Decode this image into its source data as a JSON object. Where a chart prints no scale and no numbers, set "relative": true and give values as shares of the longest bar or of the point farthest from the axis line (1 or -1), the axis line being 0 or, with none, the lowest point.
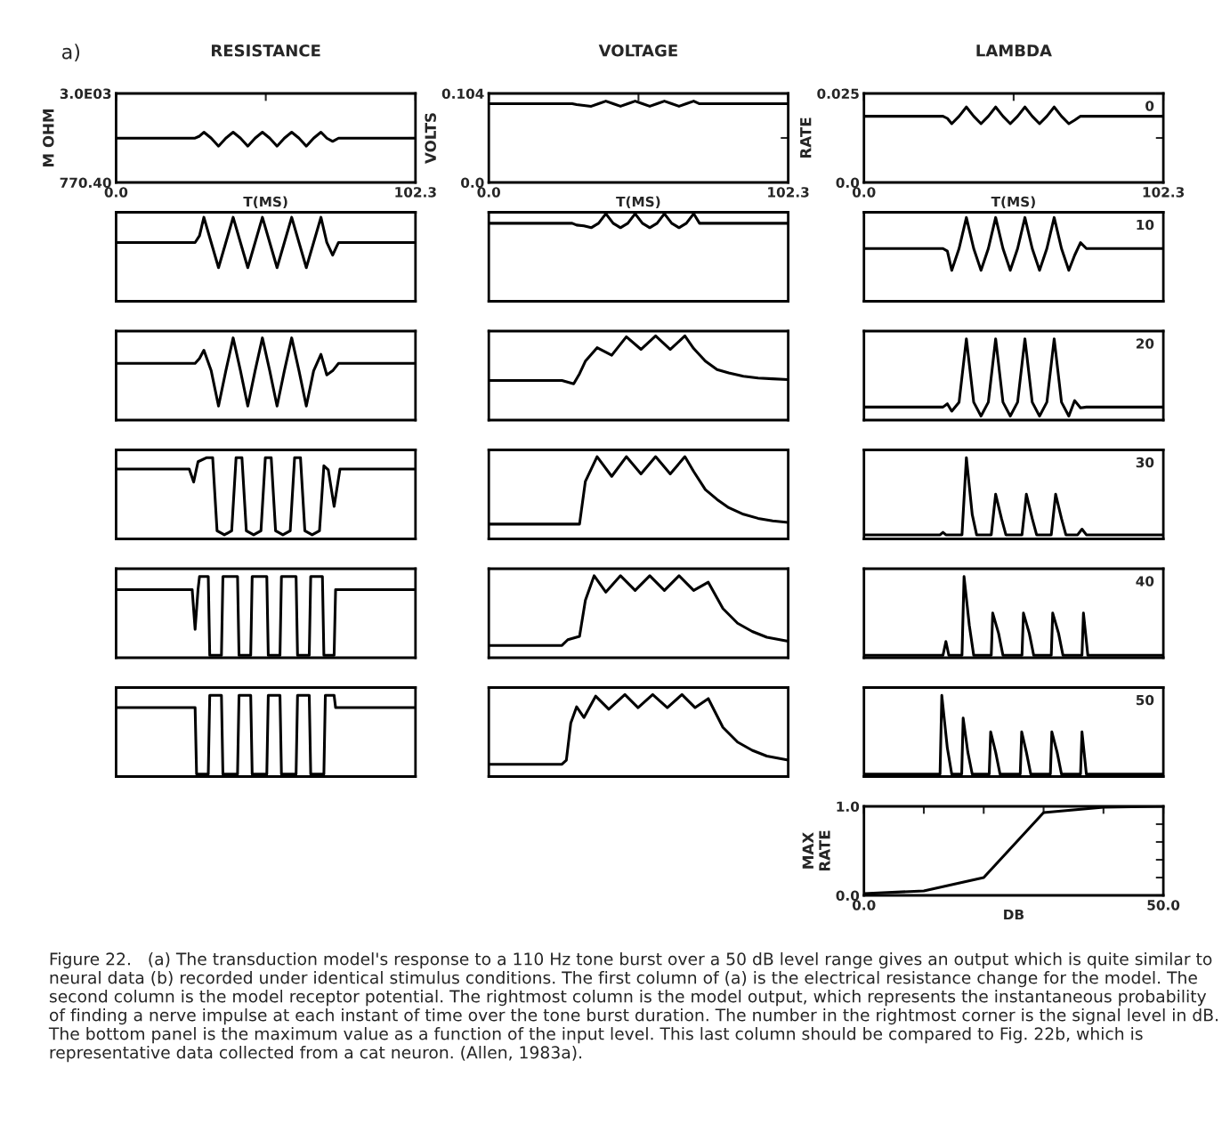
{
  "chart_data": [
    {
      "type": "line",
      "title": "RESISTANCE",
      "xlabel": "T(MS)",
      "ylabel": "M OHM",
      "annotations": [
        "a)",
        "Figure 22.   (a) The transduction model's response to a 110 Hz tone burst over a 50 dB level range gives an output which is quite similar to neural data (b) recorded under identical stimulus conditions. The first column of (a) is the electrical resistance change for the model. The second column is the model receptor potential. The rightmost column is the model output, which represents the instantaneous probability of finding a nerve impulse at each instant of time over the tone burst duration. The number in the rightmost corner is the signal level in dB. The bottom panel is the maximum value as a function of the input level. This last column should be compared to Fig. 22b, which is representative data collected from a cat neuron. (Allen, 1983a)."
      ],
      "xlim": [
        0,
        102.3
      ],
      "ylim": [
        770.4,
        3000
      ],
      "xticks": [
        {
          "value": 0,
          "label": "0.0"
        },
        {
          "value": 51.15,
          "label": null
        },
        {
          "value": 102.3,
          "label": "102.3"
        }
      ],
      "yticks": [
        {
          "value": 770.4,
          "label": "770.40"
        },
        {
          "value": 1885,
          "label": null
        },
        {
          "value": 3000,
          "label": "3.0E03"
        }
      ],
      "x": [
        0,
        27,
        28.5,
        30,
        32.5,
        35,
        37.5,
        40,
        42.5,
        45,
        47.5,
        50,
        52.5,
        55,
        57.5,
        60,
        62.5,
        65,
        67.5,
        70,
        72,
        74,
        76,
        102.3
      ],
      "series": [
        {
          "color": "#000000",
          "values": [
            1880,
            1880,
            1930,
            2030,
            1880,
            1680,
            1880,
            2030,
            1880,
            1680,
            1880,
            2030,
            1880,
            1680,
            1880,
            2030,
            1880,
            1680,
            1880,
            2030,
            1880,
            1800,
            1880,
            1880
          ]
        }
      ]
    },
    {
      "type": "line",
      "title": "VOLTAGE",
      "xlabel": "T(MS)",
      "ylabel": "VOLTS",
      "xlim": [
        0,
        102.3
      ],
      "ylim": [
        0,
        0.104
      ],
      "xticks": [
        {
          "value": 0,
          "label": "0.0"
        },
        {
          "value": 51.15,
          "label": null
        },
        {
          "value": 102.3,
          "label": "102.3"
        }
      ],
      "yticks": [
        {
          "value": 0,
          "label": "0.0"
        },
        {
          "value": 0.052,
          "label": null
        },
        {
          "value": 0.104,
          "label": "0.104"
        }
      ],
      "x": [
        0,
        27,
        28.5,
        30,
        32.5,
        35,
        37.5,
        40,
        42.5,
        45,
        47.5,
        50,
        52.5,
        55,
        57.5,
        60,
        62.5,
        65,
        67.5,
        70,
        72,
        74,
        76,
        102.3
      ],
      "series": [
        {
          "color": "#000000",
          "values": [
            0.092,
            0.092,
            0.092,
            0.091,
            0.09,
            0.089,
            0.092,
            0.095,
            0.092,
            0.089,
            0.092,
            0.095,
            0.092,
            0.089,
            0.092,
            0.095,
            0.092,
            0.089,
            0.092,
            0.095,
            0.092,
            0.092,
            0.092,
            0.092
          ]
        }
      ]
    },
    {
      "type": "line",
      "title": "LAMBDA",
      "xlabel": "T(MS)",
      "ylabel": "RATE",
      "annotations": [
        "0"
      ],
      "xlim": [
        0,
        102.3
      ],
      "ylim": [
        0,
        0.025
      ],
      "xticks": [
        {
          "value": 0,
          "label": "0.0"
        },
        {
          "value": 51.15,
          "label": null
        },
        {
          "value": 102.3,
          "label": "102.3"
        }
      ],
      "yticks": [
        {
          "value": 0,
          "label": "0.0"
        },
        {
          "value": 0.0125,
          "label": null
        },
        {
          "value": 0.025,
          "label": "0.025"
        }
      ],
      "x": [
        0,
        27,
        28.5,
        30,
        32.5,
        35,
        37.5,
        40,
        42.5,
        45,
        47.5,
        50,
        52.5,
        55,
        57.5,
        60,
        62.5,
        65,
        67.5,
        70,
        72,
        74,
        76,
        102.3
      ],
      "series": [
        {
          "color": "#000000",
          "values": [
            0.0186,
            0.0186,
            0.018,
            0.0165,
            0.0186,
            0.0212,
            0.0186,
            0.0165,
            0.0186,
            0.0212,
            0.0186,
            0.0165,
            0.0186,
            0.0212,
            0.0186,
            0.0165,
            0.0186,
            0.0212,
            0.0186,
            0.0165,
            0.0175,
            0.0186,
            0.0186,
            0.0186
          ]
        }
      ]
    },
    {
      "type": "line",
      "relative": true,
      "xlim": [
        0,
        102.3
      ],
      "x": [
        0,
        27,
        28.5,
        30,
        32.5,
        35,
        37.5,
        40,
        42.5,
        45,
        47.5,
        50,
        52.5,
        55,
        57.5,
        60,
        62.5,
        65,
        67.5,
        70,
        72,
        74,
        76,
        102.3
      ],
      "series": [
        {
          "color": "#000000",
          "values": [
            0.7,
            0.7,
            0.78,
            1,
            0.7,
            0.4,
            0.7,
            1,
            0.7,
            0.4,
            0.7,
            1,
            0.7,
            0.4,
            0.7,
            1,
            0.7,
            0.4,
            0.7,
            1,
            0.7,
            0.55,
            0.7,
            0.7
          ]
        }
      ]
    },
    {
      "type": "line",
      "relative": true,
      "xlim": [
        0,
        102.3
      ],
      "x": [
        0,
        27,
        28.5,
        30,
        32.5,
        35,
        37.5,
        40,
        42.5,
        45,
        47.5,
        50,
        52.5,
        55,
        57.5,
        60,
        62.5,
        65,
        67.5,
        70,
        72,
        74,
        76,
        102.3
      ],
      "series": [
        {
          "color": "#000000",
          "values": [
            0.89,
            0.89,
            0.89,
            0.87,
            0.86,
            0.84,
            0.89,
            1,
            0.89,
            0.84,
            0.89,
            1,
            0.89,
            0.84,
            0.89,
            1,
            0.89,
            0.84,
            0.89,
            1,
            0.89,
            0.89,
            0.89,
            0.89
          ]
        }
      ]
    },
    {
      "type": "line",
      "relative": true,
      "xlim": [
        0,
        102.3
      ],
      "annotations": [
        "10"
      ],
      "x": [
        0,
        27,
        28.5,
        30,
        32.5,
        35,
        37.5,
        40,
        42.5,
        45,
        47.5,
        50,
        52.5,
        55,
        57.5,
        60,
        62.5,
        65,
        67.5,
        70,
        72,
        74,
        76,
        102.3
      ],
      "series": [
        {
          "color": "#000000",
          "values": [
            0.63,
            0.63,
            0.6,
            0.37,
            0.63,
            1,
            0.63,
            0.37,
            0.63,
            1,
            0.63,
            0.37,
            0.63,
            1,
            0.63,
            0.37,
            0.63,
            1,
            0.63,
            0.37,
            0.55,
            0.7,
            0.63,
            0.63
          ]
        }
      ]
    },
    {
      "type": "line",
      "relative": true,
      "xlim": [
        0,
        102.3
      ],
      "x": [
        0,
        27,
        28.5,
        30,
        32.5,
        35,
        37.5,
        40,
        42.5,
        45,
        47.5,
        50,
        52.5,
        55,
        57.5,
        60,
        62.5,
        65,
        67.5,
        70,
        72,
        74,
        76,
        102.3
      ],
      "series": [
        {
          "color": "#000000",
          "values": [
            0.69,
            0.69,
            0.75,
            0.85,
            0.6,
            0.17,
            0.6,
            1,
            0.6,
            0.17,
            0.6,
            1,
            0.6,
            0.17,
            0.6,
            1,
            0.6,
            0.17,
            0.6,
            0.8,
            0.55,
            0.6,
            0.69,
            0.69
          ]
        }
      ]
    },
    {
      "type": "line",
      "relative": true,
      "xlim": [
        0,
        102.3
      ],
      "x": [
        0,
        25,
        29,
        31,
        33,
        37,
        42,
        47,
        52,
        57,
        62,
        67,
        70,
        74,
        78,
        82,
        87,
        92,
        97,
        102.3
      ],
      "series": [
        {
          "color": "#000000",
          "values": [
            0.47,
            0.47,
            0.43,
            0.55,
            0.7,
            0.86,
            0.77,
            0.99,
            0.84,
            1,
            0.84,
            1,
            0.85,
            0.7,
            0.6,
            0.56,
            0.52,
            0.5,
            0.49,
            0.48
          ]
        }
      ]
    },
    {
      "type": "line",
      "relative": true,
      "xlim": [
        0,
        102.3
      ],
      "annotations": [
        "20"
      ],
      "x": [
        0,
        27,
        28.5,
        30,
        32.5,
        35,
        37.5,
        40,
        42.5,
        45,
        47.5,
        50,
        52.5,
        55,
        57.5,
        60,
        62.5,
        65,
        67.5,
        70,
        72,
        74,
        76,
        102.3
      ],
      "series": [
        {
          "color": "#000000",
          "values": [
            0.16,
            0.16,
            0.2,
            0.11,
            0.22,
            1,
            0.22,
            0.05,
            0.22,
            1,
            0.22,
            0.05,
            0.22,
            1,
            0.22,
            0.05,
            0.22,
            1,
            0.22,
            0.05,
            0.24,
            0.15,
            0.16,
            0.16
          ]
        }
      ]
    },
    {
      "type": "line",
      "relative": true,
      "xlim": [
        0,
        102.3
      ],
      "x": [
        0,
        25,
        26.5,
        28,
        31,
        33,
        34.5,
        37,
        39.5,
        41,
        43,
        44.5,
        47,
        49.5,
        51,
        53,
        54.5,
        57,
        59.5,
        61,
        63,
        64.5,
        67,
        69.5,
        71,
        72.5,
        74.5,
        76.5,
        102.3
      ],
      "series": [
        {
          "color": "#000000",
          "values": [
            0.86,
            0.86,
            0.7,
            0.95,
            1,
            1,
            0.1,
            0.05,
            0.1,
            1,
            1,
            0.1,
            0.05,
            0.1,
            1,
            1,
            0.1,
            0.05,
            0.1,
            1,
            1,
            0.1,
            0.05,
            0.1,
            0.9,
            0.85,
            0.4,
            0.86,
            0.86
          ]
        }
      ]
    },
    {
      "type": "line",
      "relative": true,
      "xlim": [
        0,
        102.3
      ],
      "x": [
        0,
        25,
        29,
        31,
        33,
        37,
        42,
        47,
        52,
        57,
        62,
        67,
        70,
        74,
        78,
        82,
        87,
        92,
        97,
        102.3
      ],
      "series": [
        {
          "color": "#000000",
          "values": [
            0.18,
            0.18,
            0.18,
            0.18,
            0.7,
            1,
            0.76,
            1,
            0.79,
            1,
            0.79,
            1,
            0.82,
            0.6,
            0.48,
            0.38,
            0.3,
            0.25,
            0.22,
            0.2
          ]
        }
      ]
    },
    {
      "type": "line",
      "relative": true,
      "xlim": [
        0,
        102.3
      ],
      "annotations": [
        "30"
      ],
      "x": [
        0,
        26,
        27,
        28,
        33.5,
        35,
        37,
        38.5,
        43.5,
        45,
        47,
        48.5,
        54,
        55.5,
        57.5,
        59,
        64,
        65.5,
        67.5,
        69,
        73,
        74.5,
        76,
        102.3
      ],
      "series": [
        {
          "color": "#000000",
          "values": [
            0.05,
            0.05,
            0.08,
            0.05,
            0.05,
            1,
            0.3,
            0.05,
            0.05,
            0.55,
            0.25,
            0.05,
            0.05,
            0.55,
            0.25,
            0.05,
            0.05,
            0.55,
            0.25,
            0.05,
            0.05,
            0.12,
            0.05,
            0.05
          ]
        }
      ]
    },
    {
      "type": "line",
      "relative": true,
      "xlim": [
        0,
        102.3
      ],
      "x": [
        0,
        26,
        27,
        28,
        28.5,
        31.5,
        32,
        36,
        36.5,
        41.5,
        42,
        46,
        46.5,
        51.5,
        52,
        56,
        56.5,
        61.5,
        62,
        66,
        66.5,
        70.5,
        71,
        74.5,
        75,
        102.3
      ],
      "series": [
        {
          "color": "#000000",
          "values": [
            0.84,
            0.84,
            0.35,
            0.84,
            1,
            1,
            0.03,
            0.03,
            1,
            1,
            0.03,
            0.03,
            1,
            1,
            0.03,
            0.03,
            1,
            1,
            0.03,
            0.03,
            1,
            1,
            0.03,
            0.03,
            0.84,
            0.84
          ]
        }
      ]
    },
    {
      "type": "line",
      "relative": true,
      "xlim": [
        0,
        102.3
      ],
      "x": [
        0,
        25,
        27,
        31,
        33,
        36,
        40,
        45,
        50,
        55,
        60,
        65,
        70,
        75,
        80,
        85,
        90,
        95,
        102.3
      ],
      "series": [
        {
          "color": "#000000",
          "values": [
            0.15,
            0.15,
            0.22,
            0.26,
            0.7,
            1,
            0.8,
            1,
            0.82,
            1,
            0.82,
            1,
            0.82,
            0.92,
            0.6,
            0.42,
            0.32,
            0.25,
            0.2
          ]
        }
      ]
    },
    {
      "type": "line",
      "relative": true,
      "xlim": [
        0,
        102.3
      ],
      "annotations": [
        "40"
      ],
      "x": [
        0,
        27,
        28,
        29,
        33.5,
        34.2,
        36,
        37.5,
        43.5,
        44,
        46,
        47.5,
        54,
        54.5,
        56.5,
        58,
        64,
        64.5,
        66.5,
        68,
        74.5,
        75,
        76.5,
        102.3
      ],
      "series": [
        {
          "color": "#000000",
          "values": [
            0.03,
            0.03,
            0.2,
            0.03,
            0.03,
            1,
            0.4,
            0.03,
            0.03,
            0.55,
            0.3,
            0.03,
            0.03,
            0.55,
            0.3,
            0.03,
            0.03,
            0.55,
            0.3,
            0.03,
            0.03,
            0.55,
            0.03,
            0.03
          ]
        }
      ]
    },
    {
      "type": "line",
      "relative": true,
      "xlim": [
        0,
        102.3
      ],
      "x": [
        0,
        27,
        27.5,
        31.5,
        32,
        36,
        36.5,
        41.5,
        42,
        46,
        46.5,
        51.5,
        52,
        56,
        56.5,
        61.5,
        62,
        66,
        66.5,
        71,
        71.5,
        74.5,
        75,
        102.3
      ],
      "series": [
        {
          "color": "#000000",
          "values": [
            0.85,
            0.85,
            0.03,
            0.03,
            1,
            1,
            0.03,
            0.03,
            1,
            1,
            0.03,
            0.03,
            1,
            1,
            0.03,
            0.03,
            1,
            1,
            0.03,
            0.03,
            1,
            1,
            0.85,
            0.85
          ]
        }
      ]
    },
    {
      "type": "line",
      "relative": true,
      "xlim": [
        0,
        102.3
      ],
      "x": [
        0,
        25,
        26.5,
        28,
        30,
        32.5,
        36.5,
        41,
        46.5,
        51,
        56,
        61,
        66,
        70.5,
        75,
        80,
        85,
        90,
        95,
        102.3
      ],
      "series": [
        {
          "color": "#000000",
          "values": [
            0.15,
            0.15,
            0.2,
            0.65,
            0.85,
            0.72,
            0.98,
            0.82,
            1,
            0.84,
            1,
            0.84,
            1,
            0.84,
            0.95,
            0.6,
            0.42,
            0.32,
            0.25,
            0.2
          ]
        }
      ]
    },
    {
      "type": "line",
      "relative": true,
      "xlim": [
        0,
        102.3
      ],
      "annotations": [
        "50"
      ],
      "x": [
        0,
        26,
        26.6,
        28.5,
        30,
        33.4,
        33.9,
        35.5,
        37,
        42.8,
        43.3,
        45,
        46.5,
        53.4,
        53.9,
        55.5,
        57,
        63.7,
        64.2,
        66,
        67.5,
        74,
        74.5,
        76,
        102.3
      ],
      "series": [
        {
          "color": "#000000",
          "values": [
            0.03,
            0.03,
            1,
            0.35,
            0.03,
            0.03,
            0.72,
            0.3,
            0.03,
            0.03,
            0.55,
            0.3,
            0.03,
            0.03,
            0.55,
            0.3,
            0.03,
            0.03,
            0.55,
            0.3,
            0.03,
            0.03,
            0.55,
            0.03,
            0.03
          ]
        }
      ]
    },
    {
      "type": "line",
      "xlabel": "DB",
      "ylabel": "MAX\nRATE",
      "xlim": [
        0,
        50
      ],
      "ylim": [
        0,
        1
      ],
      "xticks": [
        {
          "value": 0,
          "label": "0.0"
        },
        {
          "value": 10,
          "label": null
        },
        {
          "value": 20,
          "label": null
        },
        {
          "value": 30,
          "label": null
        },
        {
          "value": 40,
          "label": null
        },
        {
          "value": 50,
          "label": "50.0"
        }
      ],
      "yticks": [
        {
          "value": 0,
          "label": "0.0"
        },
        {
          "value": 0.2,
          "label": null
        },
        {
          "value": 0.4,
          "label": null
        },
        {
          "value": 0.6,
          "label": null
        },
        {
          "value": 0.8,
          "label": null
        },
        {
          "value": 1,
          "label": "1.0"
        }
      ],
      "x": [
        0,
        10,
        20,
        30,
        40,
        50
      ],
      "series": [
        {
          "color": "#000000",
          "values": [
            0.02,
            0.05,
            0.2,
            0.93,
            0.99,
            1.0
          ]
        }
      ]
    }
  ]
}
